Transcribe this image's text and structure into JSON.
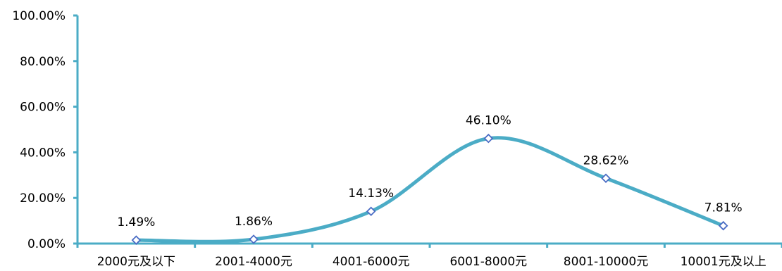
{
  "chart_data": {
    "type": "line",
    "smooth": true,
    "categories": [
      "2000元及以下",
      "2001-4000元",
      "4001-6000元",
      "6001-8000元",
      "8001-10000元",
      "10001元及以上"
    ],
    "values": [
      1.49,
      1.86,
      14.13,
      46.1,
      28.62,
      7.81
    ],
    "data_labels": [
      "1.49%",
      "1.86%",
      "14.13%",
      "46.10%",
      "28.62%",
      "7.81%"
    ],
    "y_ticks": [
      "0.00%",
      "20.00%",
      "40.00%",
      "60.00%",
      "80.00%",
      "100.00%"
    ],
    "ylim": [
      0,
      100
    ],
    "grid": false,
    "legend": "none",
    "colors": {
      "line": "#4bacc6",
      "marker_stroke": "#4a6cc4",
      "marker_fill": "#ffffff",
      "axis": "#4bacc6"
    }
  }
}
